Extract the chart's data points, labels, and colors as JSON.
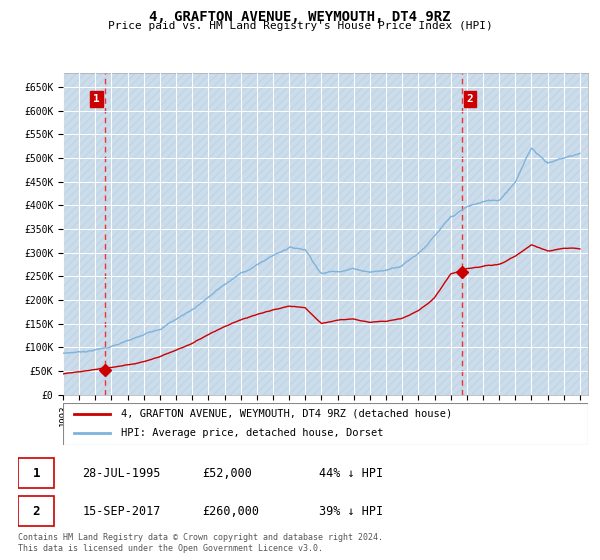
{
  "title": "4, GRAFTON AVENUE, WEYMOUTH, DT4 9RZ",
  "subtitle": "Price paid vs. HM Land Registry's House Price Index (HPI)",
  "ylim": [
    0,
    680000
  ],
  "yticks": [
    0,
    50000,
    100000,
    150000,
    200000,
    250000,
    300000,
    350000,
    400000,
    450000,
    500000,
    550000,
    600000,
    650000
  ],
  "ytick_labels": [
    "£0",
    "£50K",
    "£100K",
    "£150K",
    "£200K",
    "£250K",
    "£300K",
    "£350K",
    "£400K",
    "£450K",
    "£500K",
    "£550K",
    "£600K",
    "£650K"
  ],
  "hpi_color": "#7fb3d9",
  "price_color": "#cc0000",
  "marker_color": "#cc0000",
  "dashed_line_color": "#ee3333",
  "annotation_box_color": "#cc0000",
  "background_color": "#dce9f5",
  "grid_color": "#ffffff",
  "transaction1_date": 1995.57,
  "transaction1_price": 52000,
  "transaction1_label": "1",
  "transaction2_date": 2017.71,
  "transaction2_price": 260000,
  "transaction2_label": "2",
  "legend_entry1": "4, GRAFTON AVENUE, WEYMOUTH, DT4 9RZ (detached house)",
  "legend_entry2": "HPI: Average price, detached house, Dorset",
  "table_row1": [
    "1",
    "28-JUL-1995",
    "£52,000",
    "44% ↓ HPI"
  ],
  "table_row2": [
    "2",
    "15-SEP-2017",
    "£260,000",
    "39% ↓ HPI"
  ],
  "footer": "Contains HM Land Registry data © Crown copyright and database right 2024.\nThis data is licensed under the Open Government Licence v3.0.",
  "xlim_start": 1993.0,
  "xlim_end": 2025.5,
  "hpi_knots_x": [
    1993,
    1994,
    1995,
    1996,
    1997,
    1998,
    1999,
    2000,
    2001,
    2002,
    2003,
    2004,
    2005,
    2006,
    2007,
    2008,
    2009,
    2010,
    2011,
    2012,
    2013,
    2014,
    2015,
    2016,
    2017,
    2018,
    2019,
    2020,
    2021,
    2022,
    2023,
    2024,
    2025
  ],
  "hpi_knots_y": [
    88000,
    91000,
    96000,
    103000,
    112000,
    122000,
    138000,
    158000,
    178000,
    205000,
    230000,
    252000,
    270000,
    290000,
    308000,
    305000,
    255000,
    262000,
    268000,
    262000,
    265000,
    278000,
    305000,
    340000,
    375000,
    395000,
    405000,
    408000,
    450000,
    520000,
    490000,
    500000,
    510000
  ],
  "price_knots_x": [
    1993,
    1994,
    1995,
    1996,
    1997,
    1998,
    1999,
    2000,
    2001,
    2002,
    2003,
    2004,
    2005,
    2006,
    2007,
    2008,
    2009,
    2010,
    2011,
    2012,
    2013,
    2014,
    2015,
    2016,
    2017,
    2018,
    2019,
    2020,
    2021,
    2022,
    2023,
    2024,
    2025
  ],
  "price_knots_y": [
    44000,
    47000,
    52000,
    56000,
    62000,
    70000,
    82000,
    96000,
    110000,
    130000,
    148000,
    162000,
    172000,
    180000,
    188000,
    185000,
    152000,
    158000,
    162000,
    155000,
    158000,
    166000,
    183000,
    210000,
    260000,
    270000,
    275000,
    278000,
    295000,
    320000,
    305000,
    310000,
    308000
  ]
}
